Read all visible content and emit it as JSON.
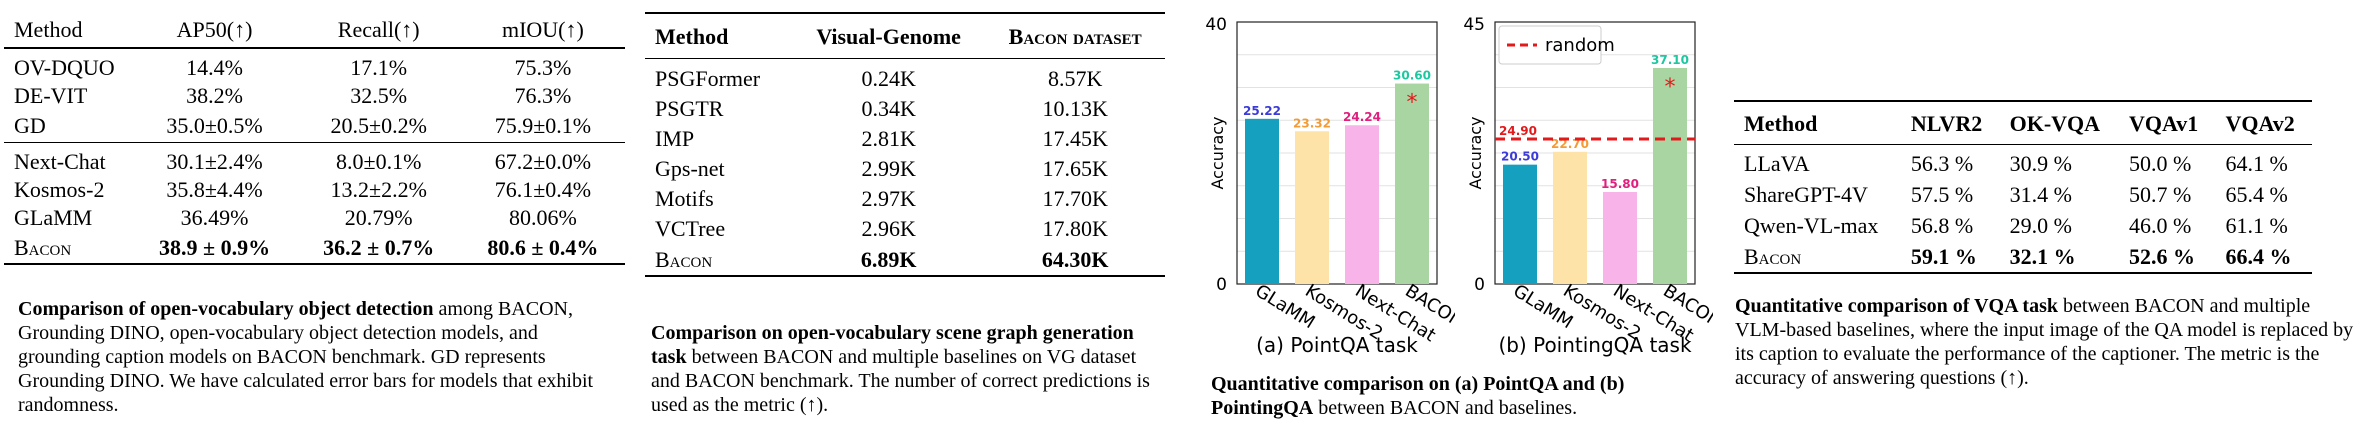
{
  "table1": {
    "headers": [
      "Method",
      "AP50(↑)",
      "Recall(↑)",
      "mIOU(↑)"
    ],
    "groups": [
      [
        [
          "OV-DQUO",
          "14.4%",
          "17.1%",
          "75.3%"
        ],
        [
          "DE-VIT",
          "38.2%",
          "32.5%",
          "76.3%"
        ],
        [
          "GD",
          "35.0±0.5%",
          "20.5±0.2%",
          "75.9±0.1%"
        ]
      ],
      [
        [
          "Next-Chat",
          "30.1±2.4%",
          "8.0±0.1%",
          "67.2±0.0%"
        ],
        [
          "Kosmos-2",
          "35.8±4.4%",
          "13.2±2.2%",
          "76.1±0.4%"
        ],
        [
          "GLaMM",
          "36.49%",
          "20.79%",
          "80.06%"
        ],
        [
          "Bacon",
          "38.9 ± 0.9%",
          "36.2 ± 0.7%",
          "80.6 ± 0.4%"
        ]
      ]
    ],
    "caption_bold": "Comparison of open-vocabulary object detection",
    "caption_rest": " among BACON, Grounding DINO, open-vocabulary object detection models, and grounding caption models on BACON benchmark. GD represents Grounding DINO. We have calculated error bars for models that exhibit randomness."
  },
  "table2": {
    "headers": [
      "Method",
      "Visual-Genome",
      "Bacon dataset"
    ],
    "rows": [
      [
        "PSGFormer",
        "0.24K",
        "8.57K"
      ],
      [
        "PSGTR",
        "0.34K",
        "10.13K"
      ],
      [
        "IMP",
        "2.81K",
        "17.45K"
      ],
      [
        "Gps-net",
        "2.99K",
        "17.65K"
      ],
      [
        "Motifs",
        "2.97K",
        "17.70K"
      ],
      [
        "VCTree",
        "2.96K",
        "17.80K"
      ],
      [
        "Bacon",
        "6.89K",
        "64.30K"
      ]
    ],
    "caption_bold": "Comparison on open-vocabulary scene graph generation task",
    "caption_rest": " between BACON and multiple baselines on VG dataset and BACON benchmark. The number of correct predictions is used as the metric (↑)."
  },
  "charts": {
    "caption_bold1": "Quantitative comparison on (a) PointQA and (b) PointingQA",
    "caption_rest": " between BACON and baselines."
  },
  "chart_data": [
    {
      "type": "bar",
      "title": "(a) PointQA task",
      "ylabel": "Accuracy",
      "categories": [
        "GLaMM",
        "Kosmos-2",
        "Next-Chat",
        "BACON"
      ],
      "values": [
        25.22,
        23.32,
        24.24,
        30.6
      ],
      "labels": [
        "25.22",
        "23.32",
        "24.24",
        "30.60"
      ],
      "ylim": [
        0,
        40
      ],
      "yticks": [
        "0",
        "40"
      ],
      "bar_colors": [
        "#15a0bf",
        "#fde3a7",
        "#f8b4e9",
        "#a8d5a2"
      ],
      "label_colors": [
        "#3b3bd8",
        "#f39c35",
        "#e0207e",
        "#1fc7a0"
      ],
      "marker": "*",
      "grid": true
    },
    {
      "type": "bar",
      "title": "(b) PointingQA task",
      "ylabel": "Accuracy",
      "categories": [
        "GLaMM",
        "Kosmos-2",
        "Next-Chat",
        "BACON"
      ],
      "values": [
        20.5,
        22.7,
        15.8,
        37.1
      ],
      "labels": [
        "20.50",
        "22.70",
        "15.80",
        "37.10"
      ],
      "ylim": [
        0,
        45
      ],
      "yticks": [
        "0",
        "45"
      ],
      "bar_colors": [
        "#15a0bf",
        "#fde3a7",
        "#f8b4e9",
        "#a8d5a2"
      ],
      "label_colors": [
        "#3b3bd8",
        "#f39c35",
        "#e0207e",
        "#1fc7a0"
      ],
      "reference_line": {
        "name": "random",
        "value": 24.9,
        "label": "24.90",
        "color": "#e31a1c"
      },
      "legend": "top-left",
      "marker": "*",
      "grid": true
    }
  ],
  "table3": {
    "headers": [
      "Method",
      "NLVR2",
      "OK-VQA",
      "VQAv1",
      "VQAv2"
    ],
    "rows": [
      [
        "LLaVA",
        "56.3 %",
        "30.9 %",
        "50.0 %",
        "64.1 %"
      ],
      [
        "ShareGPT-4V",
        "57.5 %",
        "31.4 %",
        "50.7 %",
        "65.4 %"
      ],
      [
        "Qwen-VL-max",
        "56.8 %",
        "29.0 %",
        "46.0 %",
        "61.1 %"
      ],
      [
        "Bacon",
        "59.1 %",
        "32.1 %",
        "52.6 %",
        "66.4 %"
      ]
    ],
    "caption_bold": "Quantitative comparison of VQA task",
    "caption_rest": " between BACON and multiple VLM-based baselines, where the input image of the QA model is replaced by its caption to evaluate the performance of the captioner. The metric is the accuracy of answering questions (↑)."
  }
}
